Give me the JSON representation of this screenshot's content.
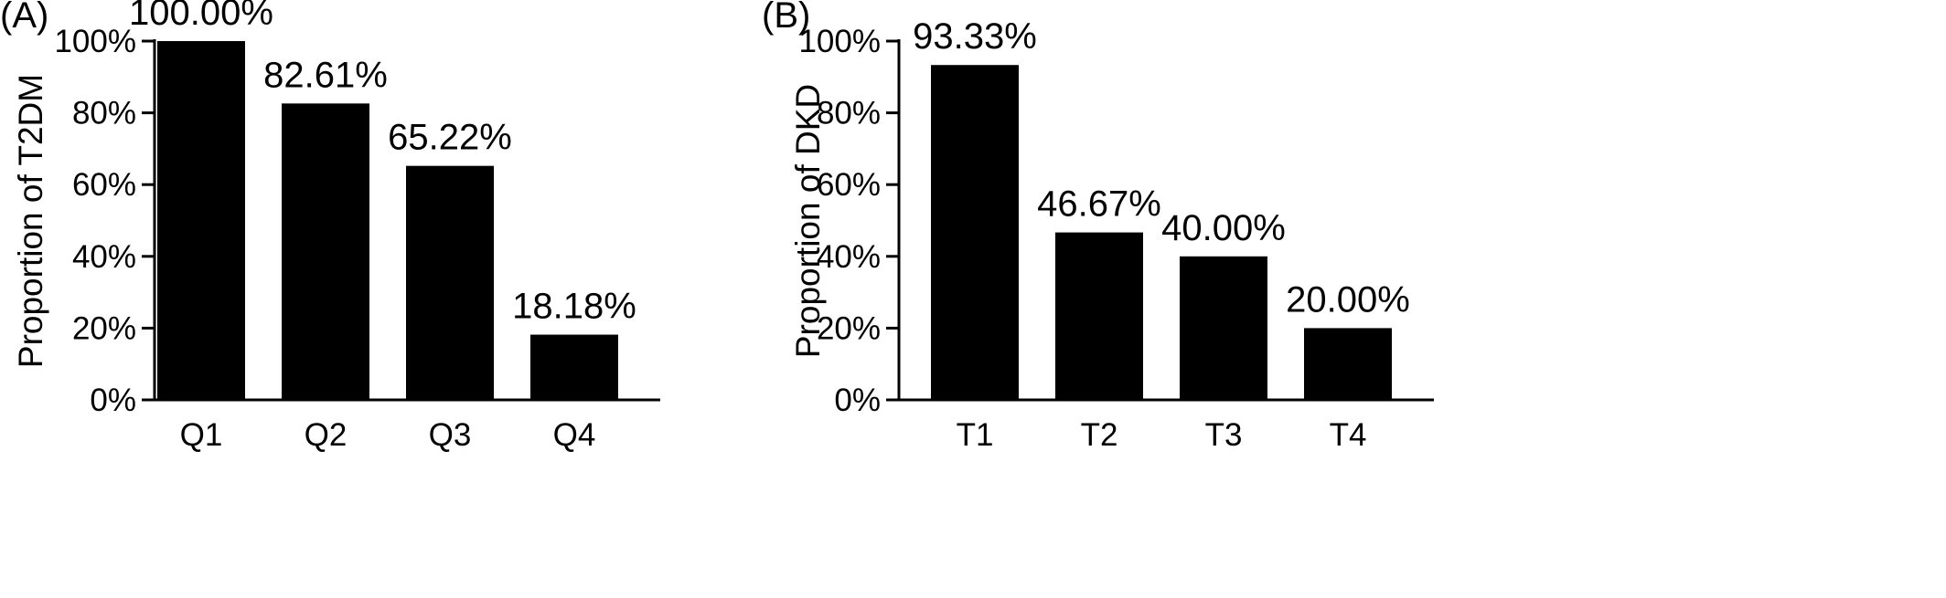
{
  "chart_data": [
    {
      "type": "bar",
      "panel_label": "(A)",
      "ylabel": "Proportion of T2DM",
      "xlabel": "",
      "categories": [
        "Q1",
        "Q2",
        "Q3",
        "Q4"
      ],
      "values": [
        100.0,
        82.61,
        65.22,
        18.18
      ],
      "value_labels": [
        "100.00%",
        "82.61%",
        "65.22%",
        "18.18%"
      ],
      "ylim": [
        0,
        100
      ],
      "yticks": [
        0,
        20,
        40,
        60,
        80,
        100
      ],
      "ytick_labels": [
        "0%",
        "20%",
        "40%",
        "60%",
        "80%",
        "100%"
      ],
      "bar_color": "#000000",
      "grid": false,
      "legend": "none"
    },
    {
      "type": "bar",
      "panel_label": "(B)",
      "ylabel": "Proportion of DKD",
      "xlabel": "",
      "categories": [
        "T1",
        "T2",
        "T3",
        "T4"
      ],
      "values": [
        93.33,
        46.67,
        40.0,
        20.0
      ],
      "value_labels": [
        "93.33%",
        "46.67%",
        "40.00%",
        "20.00%"
      ],
      "ylim": [
        0,
        100
      ],
      "yticks": [
        0,
        20,
        40,
        60,
        80,
        100
      ],
      "ytick_labels": [
        "0%",
        "20%",
        "40%",
        "60%",
        "80%",
        "100%"
      ],
      "bar_color": "#000000",
      "grid": false,
      "legend": "none"
    }
  ]
}
